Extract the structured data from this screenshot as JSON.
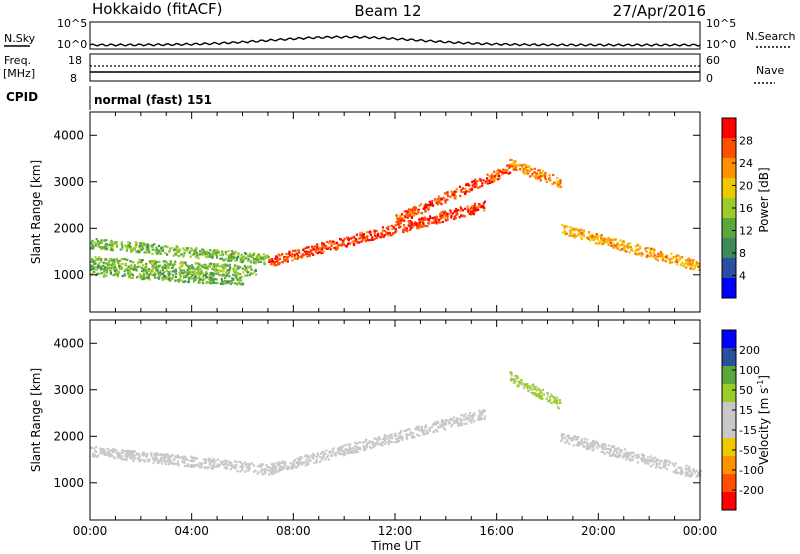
{
  "header": {
    "station": "Hokkaido (fitACF)",
    "beam": "Beam 12",
    "date": "27/Apr/2016"
  },
  "aux_panels": {
    "nsky_label": "N.Sky",
    "nsky_ticks": [
      "10^5",
      "10^0"
    ],
    "nsearch_label": "N.Search",
    "freq_label_1": "Freq.",
    "freq_label_2": "[MHz]",
    "freq_ticks": [
      "18",
      "8"
    ],
    "nave_label": "Nave",
    "nave_ticks": [
      "60",
      "0"
    ],
    "cpid_label": "CPID",
    "cpid_text": "normal (fast) 151"
  },
  "chart_data": [
    {
      "type": "heatmap",
      "quantity": "Power",
      "ylabel": "Slant Range [km]",
      "xlabel": "Time UT",
      "ylim": [
        200,
        4500
      ],
      "xlim": [
        0,
        24
      ],
      "yticks": [
        1000,
        2000,
        3000,
        4000
      ],
      "xticks": [
        "00:00",
        "04:00",
        "08:00",
        "12:00",
        "16:00",
        "20:00",
        "00:00"
      ],
      "colorbar_label": "Power [dB]",
      "colorbar_ticks": [
        "4",
        "8",
        "12",
        "16",
        "20",
        "24",
        "28"
      ],
      "colorbar_range": [
        0,
        32
      ],
      "colors": [
        "#0000ff",
        "#2a4fa0",
        "#3c8a5a",
        "#5aa83c",
        "#9ccc2a",
        "#f0c800",
        "#ff9000",
        "#ff5000",
        "#ff0000"
      ],
      "features": [
        {
          "hour_start": 0.0,
          "hour_end": 7.0,
          "range_km": [
            1700,
            1350
          ],
          "level": 14
        },
        {
          "hour_start": 0.0,
          "hour_end": 6.5,
          "range_km": [
            1300,
            1100
          ],
          "level": 14
        },
        {
          "hour_start": 0.0,
          "hour_end": 6.0,
          "range_km": [
            1100,
            900
          ],
          "level": 13
        },
        {
          "hour_start": 7.0,
          "hour_end": 15.5,
          "range_km": [
            1300,
            2500
          ],
          "level": 28
        },
        {
          "hour_start": 12.0,
          "hour_end": 16.5,
          "range_km": [
            2200,
            3300
          ],
          "level": 27
        },
        {
          "hour_start": 16.5,
          "hour_end": 18.5,
          "range_km": [
            3400,
            3000
          ],
          "level": 24
        },
        {
          "hour_start": 18.5,
          "hour_end": 24.0,
          "range_km": [
            2000,
            1200
          ],
          "level": 22
        }
      ]
    },
    {
      "type": "heatmap",
      "quantity": "Velocity",
      "ylabel": "Slant Range [km]",
      "xlabel": "Time UT",
      "ylim": [
        200,
        4500
      ],
      "xlim": [
        0,
        24
      ],
      "yticks": [
        1000,
        2000,
        3000,
        4000
      ],
      "xticks": [
        "00:00",
        "04:00",
        "08:00",
        "12:00",
        "16:00",
        "20:00",
        "00:00"
      ],
      "colorbar_label_main": "Velocity [m s",
      "colorbar_label_exp": "-1",
      "colorbar_label_end": "]",
      "colorbar_ticks": [
        "200",
        "100",
        "50",
        "15",
        "-15",
        "-50",
        "-100",
        "-200"
      ],
      "colorbar_range": [
        -250,
        250
      ],
      "colors": [
        "#ff0000",
        "#ff5000",
        "#ff9000",
        "#f0c800",
        "#c8c8c8",
        "#c8c8c8",
        "#9ccc2a",
        "#5aa83c",
        "#2a4fa0",
        "#0000ff"
      ],
      "features": [
        {
          "hour_start": 0.0,
          "hour_end": 7.0,
          "range_km": [
            1700,
            1300
          ],
          "velocity": 0
        },
        {
          "hour_start": 7.0,
          "hour_end": 15.5,
          "range_km": [
            1300,
            2500
          ],
          "velocity": 0
        },
        {
          "hour_start": 16.5,
          "hour_end": 18.5,
          "range_km": [
            3300,
            2700
          ],
          "velocity": 60
        },
        {
          "hour_start": 18.5,
          "hour_end": 24.0,
          "range_km": [
            2000,
            1200
          ],
          "velocity": 0
        }
      ]
    }
  ]
}
